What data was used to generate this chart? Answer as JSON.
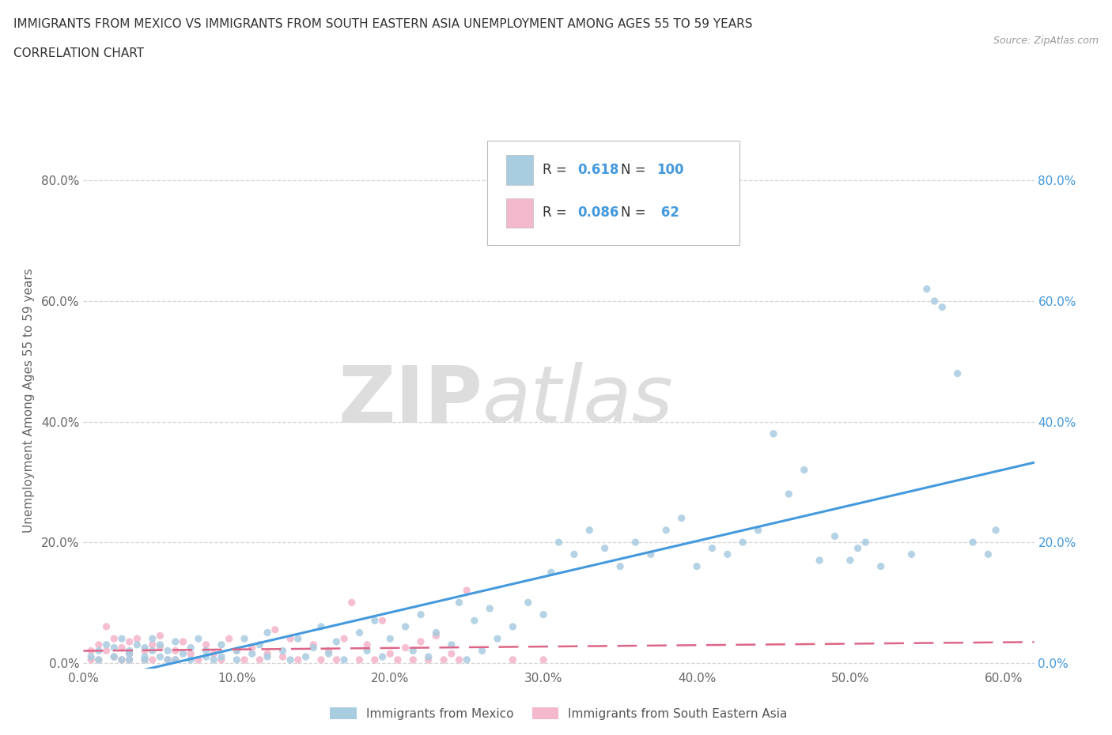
{
  "title_line1": "IMMIGRANTS FROM MEXICO VS IMMIGRANTS FROM SOUTH EASTERN ASIA UNEMPLOYMENT AMONG AGES 55 TO 59 YEARS",
  "title_line2": "CORRELATION CHART",
  "source_text": "Source: ZipAtlas.com",
  "ylabel": "Unemployment Among Ages 55 to 59 years",
  "xlim": [
    0.0,
    0.62
  ],
  "ylim": [
    -0.01,
    0.88
  ],
  "xtick_labels": [
    "0.0%",
    "10.0%",
    "20.0%",
    "30.0%",
    "40.0%",
    "50.0%",
    "60.0%"
  ],
  "xtick_values": [
    0.0,
    0.1,
    0.2,
    0.3,
    0.4,
    0.5,
    0.6
  ],
  "ytick_labels": [
    "0.0%",
    "20.0%",
    "40.0%",
    "60.0%",
    "80.0%"
  ],
  "ytick_values": [
    0.0,
    0.2,
    0.4,
    0.6,
    0.8
  ],
  "grid_color": "#cccccc",
  "background_color": "#ffffff",
  "watermark_text_zip": "ZIP",
  "watermark_text_atlas": "atlas",
  "legend_R1": "0.618",
  "legend_N1": "100",
  "legend_R2": "0.086",
  "legend_N2": "62",
  "color_mexico": "#a8cce0",
  "color_sea": "#f4b8cc",
  "color_blue_text": "#4499dd",
  "trendline1_color": "#4499dd",
  "trendline2_color": "#dd6688",
  "mexico_x": [
    0.005,
    0.01,
    0.01,
    0.015,
    0.02,
    0.02,
    0.025,
    0.025,
    0.03,
    0.03,
    0.03,
    0.035,
    0.04,
    0.04,
    0.04,
    0.045,
    0.045,
    0.05,
    0.05,
    0.055,
    0.055,
    0.06,
    0.06,
    0.065,
    0.07,
    0.07,
    0.075,
    0.08,
    0.08,
    0.085,
    0.09,
    0.09,
    0.1,
    0.1,
    0.105,
    0.11,
    0.115,
    0.12,
    0.12,
    0.13,
    0.135,
    0.14,
    0.145,
    0.15,
    0.155,
    0.16,
    0.165,
    0.17,
    0.18,
    0.185,
    0.19,
    0.195,
    0.2,
    0.21,
    0.215,
    0.22,
    0.225,
    0.23,
    0.24,
    0.245,
    0.25,
    0.255,
    0.26,
    0.265,
    0.27,
    0.28,
    0.29,
    0.3,
    0.305,
    0.31,
    0.32,
    0.33,
    0.34,
    0.35,
    0.36,
    0.37,
    0.38,
    0.39,
    0.4,
    0.41,
    0.42,
    0.43,
    0.44,
    0.45,
    0.46,
    0.47,
    0.48,
    0.49,
    0.5,
    0.505,
    0.51,
    0.52,
    0.54,
    0.55,
    0.555,
    0.56,
    0.57,
    0.58,
    0.59,
    0.595
  ],
  "mexico_y": [
    0.01,
    0.02,
    0.005,
    0.03,
    0.01,
    0.025,
    0.005,
    0.04,
    0.02,
    0.005,
    0.015,
    0.03,
    0.01,
    0.025,
    0.005,
    0.02,
    0.04,
    0.01,
    0.03,
    0.005,
    0.02,
    0.035,
    0.005,
    0.015,
    0.025,
    0.005,
    0.04,
    0.01,
    0.02,
    0.005,
    0.03,
    0.01,
    0.02,
    0.005,
    0.04,
    0.015,
    0.03,
    0.01,
    0.05,
    0.02,
    0.005,
    0.04,
    0.01,
    0.025,
    0.06,
    0.015,
    0.035,
    0.005,
    0.05,
    0.02,
    0.07,
    0.01,
    0.04,
    0.06,
    0.02,
    0.08,
    0.01,
    0.05,
    0.03,
    0.1,
    0.005,
    0.07,
    0.02,
    0.09,
    0.04,
    0.06,
    0.1,
    0.08,
    0.15,
    0.2,
    0.18,
    0.22,
    0.19,
    0.16,
    0.2,
    0.18,
    0.22,
    0.24,
    0.16,
    0.19,
    0.18,
    0.2,
    0.22,
    0.38,
    0.28,
    0.32,
    0.17,
    0.21,
    0.17,
    0.19,
    0.2,
    0.16,
    0.18,
    0.62,
    0.6,
    0.59,
    0.48,
    0.2,
    0.18,
    0.22
  ],
  "sea_x": [
    0.005,
    0.005,
    0.01,
    0.01,
    0.015,
    0.015,
    0.02,
    0.02,
    0.025,
    0.025,
    0.03,
    0.03,
    0.03,
    0.035,
    0.04,
    0.04,
    0.045,
    0.045,
    0.05,
    0.05,
    0.055,
    0.06,
    0.06,
    0.065,
    0.07,
    0.075,
    0.08,
    0.085,
    0.09,
    0.095,
    0.1,
    0.105,
    0.11,
    0.115,
    0.12,
    0.125,
    0.13,
    0.135,
    0.14,
    0.15,
    0.155,
    0.16,
    0.165,
    0.17,
    0.175,
    0.18,
    0.185,
    0.19,
    0.195,
    0.2,
    0.205,
    0.21,
    0.215,
    0.22,
    0.225,
    0.23,
    0.235,
    0.24,
    0.245,
    0.25,
    0.28,
    0.3
  ],
  "sea_y": [
    0.02,
    0.005,
    0.03,
    0.005,
    0.02,
    0.06,
    0.01,
    0.04,
    0.005,
    0.025,
    0.015,
    0.035,
    0.005,
    0.04,
    0.02,
    0.005,
    0.03,
    0.005,
    0.025,
    0.045,
    0.005,
    0.02,
    0.005,
    0.035,
    0.015,
    0.005,
    0.03,
    0.015,
    0.005,
    0.04,
    0.02,
    0.005,
    0.025,
    0.005,
    0.015,
    0.055,
    0.01,
    0.04,
    0.005,
    0.03,
    0.005,
    0.02,
    0.005,
    0.04,
    0.1,
    0.005,
    0.03,
    0.005,
    0.07,
    0.015,
    0.005,
    0.025,
    0.005,
    0.035,
    0.005,
    0.045,
    0.005,
    0.015,
    0.005,
    0.12,
    0.005,
    0.005
  ]
}
